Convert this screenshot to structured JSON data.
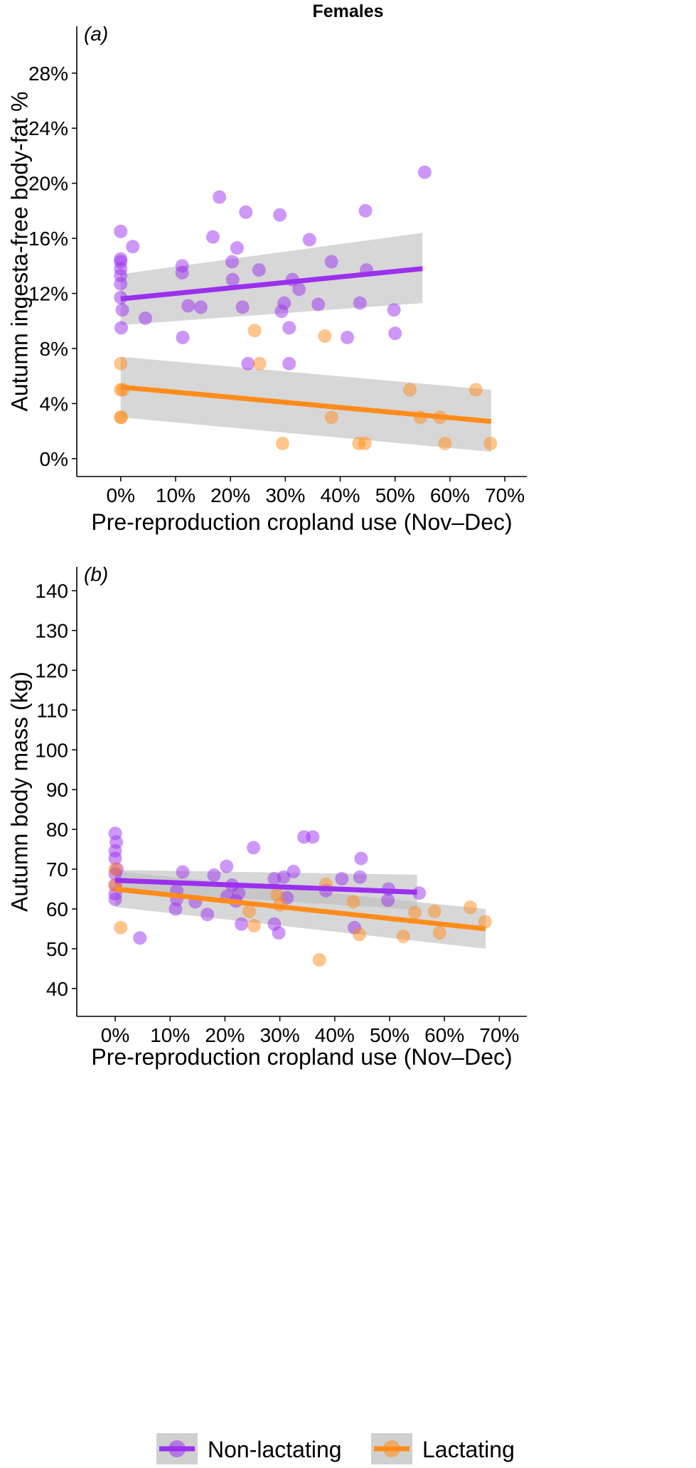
{
  "title": "Females",
  "legend": {
    "items": [
      {
        "label": "Non-lactating",
        "color": "#9b30ef"
      },
      {
        "label": "Lactating",
        "color": "#ff8c1a"
      }
    ]
  },
  "chart_data": [
    {
      "type": "scatter",
      "panel": "(a)",
      "title": "",
      "xlabel": "Pre-reproduction cropland use (Nov–Dec)",
      "ylabel": "Autumn ingesta-free body-fat %",
      "xlim": [
        -0.08,
        0.74
      ],
      "ylim": [
        -0.013,
        0.314
      ],
      "x_ticks": [
        0,
        0.1,
        0.2,
        0.3,
        0.4,
        0.5,
        0.6,
        0.7
      ],
      "x_tick_labels": [
        "0%",
        "10%",
        "20%",
        "30%",
        "40%",
        "50%",
        "60%",
        "70%"
      ],
      "y_ticks": [
        0,
        0.04,
        0.08,
        0.12,
        0.16,
        0.2,
        0.24,
        0.28
      ],
      "y_tick_labels": [
        "0%",
        "4%",
        "8%",
        "12%",
        "16%",
        "20%",
        "24%",
        "28%"
      ],
      "grid": false,
      "series": [
        {
          "name": "Non-lactating",
          "color": "#9b30ef",
          "points": [
            [
              0.0,
              0.165
            ],
            [
              0.0,
              0.145
            ],
            [
              0.0,
              0.143
            ],
            [
              0.0,
              0.138
            ],
            [
              0.0,
              0.133
            ],
            [
              0.0,
              0.127
            ],
            [
              0.0,
              0.117
            ],
            [
              0.003,
              0.108
            ],
            [
              0.001,
              0.095
            ],
            [
              0.022,
              0.154
            ],
            [
              0.045,
              0.102
            ],
            [
              0.112,
              0.14
            ],
            [
              0.112,
              0.135
            ],
            [
              0.113,
              0.088
            ],
            [
              0.123,
              0.111
            ],
            [
              0.146,
              0.11
            ],
            [
              0.168,
              0.161
            ],
            [
              0.18,
              0.19
            ],
            [
              0.203,
              0.143
            ],
            [
              0.204,
              0.13
            ],
            [
              0.212,
              0.153
            ],
            [
              0.222,
              0.11
            ],
            [
              0.228,
              0.179
            ],
            [
              0.232,
              0.069
            ],
            [
              0.252,
              0.137
            ],
            [
              0.29,
              0.177
            ],
            [
              0.293,
              0.107
            ],
            [
              0.298,
              0.113
            ],
            [
              0.307,
              0.095
            ],
            [
              0.307,
              0.069
            ],
            [
              0.313,
              0.13
            ],
            [
              0.325,
              0.123
            ],
            [
              0.344,
              0.159
            ],
            [
              0.36,
              0.112
            ],
            [
              0.384,
              0.143
            ],
            [
              0.413,
              0.088
            ],
            [
              0.436,
              0.113
            ],
            [
              0.446,
              0.18
            ],
            [
              0.448,
              0.137
            ],
            [
              0.498,
              0.108
            ],
            [
              0.5,
              0.091
            ],
            [
              0.554,
              0.208
            ]
          ],
          "trend": {
            "x": [
              0.0,
              0.55
            ],
            "y": [
              0.116,
              0.138
            ],
            "ci_lower": [
              0.097,
              0.113
            ],
            "ci_upper": [
              0.134,
              0.164
            ]
          }
        },
        {
          "name": "Lactating",
          "color": "#ff8c1a",
          "points": [
            [
              0.0,
              0.069
            ],
            [
              0.0,
              0.05
            ],
            [
              0.0,
              0.03
            ],
            [
              0.001,
              0.03
            ],
            [
              0.004,
              0.05
            ],
            [
              0.244,
              0.093
            ],
            [
              0.253,
              0.069
            ],
            [
              0.295,
              0.011
            ],
            [
              0.372,
              0.089
            ],
            [
              0.384,
              0.03
            ],
            [
              0.434,
              0.011
            ],
            [
              0.445,
              0.011
            ],
            [
              0.527,
              0.05
            ],
            [
              0.546,
              0.03
            ],
            [
              0.582,
              0.03
            ],
            [
              0.591,
              0.011
            ],
            [
              0.647,
              0.05
            ],
            [
              0.674,
              0.011
            ]
          ],
          "trend": {
            "x": [
              0.0,
              0.675
            ],
            "y": [
              0.052,
              0.027
            ],
            "ci_lower": [
              0.03,
              0.005
            ],
            "ci_upper": [
              0.074,
              0.05
            ]
          }
        }
      ]
    },
    {
      "type": "scatter",
      "panel": "(b)",
      "title": "",
      "xlabel": "Pre-reproduction cropland use (Nov–Dec)",
      "ylabel": "Autumn body mass (kg)",
      "xlim": [
        -0.07,
        0.75
      ],
      "ylim": [
        33.0,
        146.0
      ],
      "x_ticks": [
        0,
        0.1,
        0.2,
        0.3,
        0.4,
        0.5,
        0.6,
        0.7
      ],
      "x_tick_labels": [
        "0%",
        "10%",
        "20%",
        "30%",
        "40%",
        "50%",
        "60%",
        "70%"
      ],
      "y_ticks": [
        40,
        50,
        60,
        70,
        80,
        90,
        100,
        110,
        120,
        130,
        140
      ],
      "y_tick_labels": [
        "40",
        "50",
        "60",
        "70",
        "80",
        "90",
        "100",
        "110",
        "120",
        "130",
        "140"
      ],
      "grid": false,
      "series": [
        {
          "name": "Non-lactating",
          "color": "#9b30ef",
          "points": [
            [
              0.0,
              79.0
            ],
            [
              0.002,
              76.8
            ],
            [
              0.0,
              74.6
            ],
            [
              0.0,
              72.7
            ],
            [
              0.003,
              70.0
            ],
            [
              0.0,
              68.8
            ],
            [
              0.0,
              66.0
            ],
            [
              0.0,
              63.8
            ],
            [
              0.0,
              62.4
            ],
            [
              0.045,
              52.7
            ],
            [
              0.112,
              64.6
            ],
            [
              0.112,
              62.4
            ],
            [
              0.11,
              60.0
            ],
            [
              0.123,
              69.3
            ],
            [
              0.146,
              61.8
            ],
            [
              0.168,
              58.6
            ],
            [
              0.18,
              68.5
            ],
            [
              0.203,
              70.7
            ],
            [
              0.204,
              63.2
            ],
            [
              0.213,
              66.0
            ],
            [
              0.22,
              62.0
            ],
            [
              0.225,
              64.0
            ],
            [
              0.23,
              56.2
            ],
            [
              0.252,
              75.4
            ],
            [
              0.29,
              67.6
            ],
            [
              0.29,
              56.2
            ],
            [
              0.298,
              54.0
            ],
            [
              0.307,
              68.0
            ],
            [
              0.313,
              62.8
            ],
            [
              0.325,
              69.4
            ],
            [
              0.344,
              78.1
            ],
            [
              0.36,
              78.1
            ],
            [
              0.384,
              64.6
            ],
            [
              0.413,
              67.6
            ],
            [
              0.436,
              55.3
            ],
            [
              0.446,
              68.0
            ],
            [
              0.448,
              72.7
            ],
            [
              0.498,
              65.0
            ],
            [
              0.497,
              62.2
            ],
            [
              0.554,
              64.0
            ]
          ],
          "trend": {
            "x": [
              0.0,
              0.55
            ],
            "y": [
              67.2,
              64.2
            ],
            "ci_lower": [
              64.6,
              59.8
            ],
            "ci_upper": [
              69.8,
              68.6
            ]
          }
        },
        {
          "name": "Lactating",
          "color": "#ff8c1a",
          "points": [
            [
              0.0,
              70.0
            ],
            [
              0.0,
              66.0
            ],
            [
              0.01,
              55.3
            ],
            [
              0.244,
              59.4
            ],
            [
              0.253,
              55.8
            ],
            [
              0.295,
              63.5
            ],
            [
              0.3,
              61.0
            ],
            [
              0.372,
              47.2
            ],
            [
              0.384,
              66.2
            ],
            [
              0.434,
              61.8
            ],
            [
              0.445,
              53.6
            ],
            [
              0.525,
              53.1
            ],
            [
              0.546,
              59.1
            ],
            [
              0.582,
              59.4
            ],
            [
              0.591,
              54.0
            ],
            [
              0.647,
              60.4
            ],
            [
              0.674,
              56.8
            ]
          ],
          "trend": {
            "x": [
              0.0,
              0.675
            ],
            "y": [
              65.0,
              55.0
            ],
            "ci_lower": [
              60.5,
              50.0
            ],
            "ci_upper": [
              69.5,
              60.0
            ]
          }
        }
      ]
    }
  ]
}
